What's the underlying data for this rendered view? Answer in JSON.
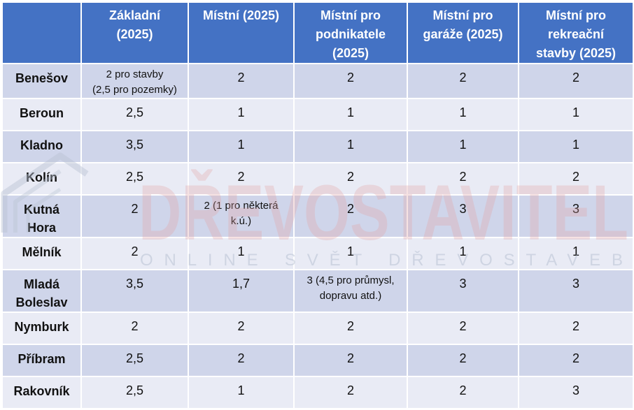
{
  "table": {
    "headers": [
      "",
      "Základní\n(2025)",
      "Místní (2025)",
      "Místní pro\npodnikatele\n(2025)",
      "Místní pro\ngaráže (2025)",
      "Místní pro\nrekreační\nstavby (2025)"
    ],
    "rows": [
      {
        "city": "Benešov",
        "cells": [
          "2 pro stavby\n(2,5 pro pozemky)",
          "2",
          "2",
          "2",
          "2"
        ]
      },
      {
        "city": "Beroun",
        "cells": [
          "2,5",
          "1",
          "1",
          "1",
          "1"
        ]
      },
      {
        "city": "Kladno",
        "cells": [
          "3,5",
          "1",
          "1",
          "1",
          "1"
        ]
      },
      {
        "city": "Kolín",
        "cells": [
          "2,5",
          "2",
          "2",
          "2",
          "2"
        ]
      },
      {
        "city": "Kutná\nHora",
        "cells": [
          "2",
          "2 (1 pro některá\nk.ú.)",
          "2",
          "3",
          "3"
        ]
      },
      {
        "city": "Mělník",
        "cells": [
          "2",
          "1",
          "1",
          "1",
          "1"
        ]
      },
      {
        "city": "Mladá\nBoleslav",
        "cells": [
          "3,5",
          "1,7",
          "3 (4,5 pro průmysl,\ndopravu atd.)",
          "3",
          "3"
        ]
      },
      {
        "city": "Nymburk",
        "cells": [
          "2",
          "2",
          "2",
          "2",
          "2"
        ]
      },
      {
        "city": "Příbram",
        "cells": [
          "2,5",
          "2",
          "2",
          "2",
          "2"
        ]
      },
      {
        "city": "Rakovník",
        "cells": [
          "2,5",
          "1",
          "2",
          "2",
          "3"
        ]
      }
    ]
  },
  "watermark": {
    "brand": "DŘEVOSTAVITEL",
    "tagline": "ONLINE SVĚT DŘEVOSTAVEB",
    "color_main": "#e3a3a3",
    "color_second": "#a7b3c6",
    "icon": "house-logo-icon"
  }
}
